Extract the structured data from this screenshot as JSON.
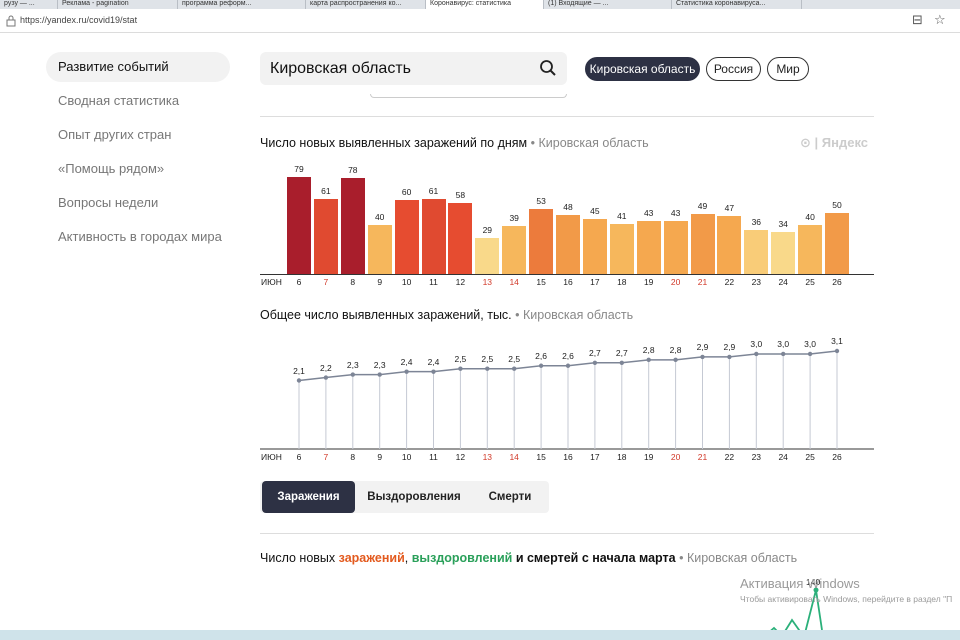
{
  "browser": {
    "url": "https://yandex.ru/covid19/stat",
    "tabs": [
      "рузу — ...",
      "Реклама - pagination",
      "программа реформ...",
      "карта распространения ко...",
      "Коронавирус: статистика",
      "(1) Входящие — ...",
      "Статистика коронавируса..."
    ]
  },
  "sidebar": {
    "items": [
      {
        "label": "Развитие событий",
        "active": true
      },
      {
        "label": "Сводная статистика"
      },
      {
        "label": "Опыт других стран"
      },
      {
        "label": "«Помощь рядом»"
      },
      {
        "label": "Вопросы недели"
      },
      {
        "label": "Активность в городах мира"
      }
    ]
  },
  "search": {
    "value": "Кировская область"
  },
  "regions": [
    {
      "label": "Кировская область",
      "active": true
    },
    {
      "label": "Россия"
    },
    {
      "label": "Мир"
    }
  ],
  "watermark": "Яндекс",
  "chart1": {
    "title": "Число новых выявленных заражений по дням",
    "region": "Кировская область"
  },
  "chart2": {
    "title": "Общее число выявленных заражений, тыс.",
    "region": "Кировская область"
  },
  "month_label": "ИЮН",
  "chart_data": [
    {
      "type": "bar",
      "title": "Число новых выявленных заражений по дням",
      "categories": [
        "6",
        "7",
        "8",
        "9",
        "10",
        "11",
        "12",
        "13",
        "14",
        "15",
        "16",
        "17",
        "18",
        "19",
        "20",
        "21",
        "22",
        "23",
        "24",
        "25",
        "26"
      ],
      "values": [
        79,
        61,
        78,
        40,
        60,
        61,
        58,
        29,
        39,
        53,
        48,
        45,
        41,
        43,
        43,
        49,
        47,
        36,
        34,
        40,
        50
      ],
      "colors": [
        "#a91e2c",
        "#e04a30",
        "#a91e2c",
        "#f6b75c",
        "#e64c30",
        "#e04a30",
        "#e64c30",
        "#f9d98a",
        "#f6b75c",
        "#ec7b3c",
        "#f29a48",
        "#f5a84f",
        "#f6b75c",
        "#f5a84f",
        "#f5a84f",
        "#f29a48",
        "#f5a84f",
        "#f9cc78",
        "#f9d98a",
        "#f6b75c",
        "#f29a48"
      ],
      "weekend": [
        false,
        true,
        false,
        false,
        false,
        false,
        false,
        true,
        true,
        false,
        false,
        false,
        false,
        false,
        true,
        true,
        false,
        false,
        false,
        false,
        false
      ]
    },
    {
      "type": "line",
      "title": "Общее число выявленных заражений, тыс.",
      "categories": [
        "6",
        "7",
        "8",
        "9",
        "10",
        "11",
        "12",
        "13",
        "14",
        "15",
        "16",
        "17",
        "18",
        "19",
        "20",
        "21",
        "22",
        "23",
        "24",
        "25",
        "26"
      ],
      "values": [
        2.1,
        2.2,
        2.3,
        2.3,
        2.4,
        2.4,
        2.5,
        2.5,
        2.5,
        2.6,
        2.6,
        2.7,
        2.7,
        2.8,
        2.8,
        2.9,
        2.9,
        3.0,
        3.0,
        3.0,
        3.1
      ],
      "labels": [
        "2,1",
        "2,2",
        "2,3",
        "2,3",
        "2,4",
        "2,4",
        "2,5",
        "2,5",
        "2,5",
        "2,6",
        "2,6",
        "2,7",
        "2,7",
        "2,8",
        "2,8",
        "2,9",
        "2,9",
        "3,0",
        "3,0",
        "3,0",
        "3,1"
      ]
    }
  ],
  "tabs_segment": [
    {
      "label": "Заражения",
      "active": true
    },
    {
      "label": "Выздоровления"
    },
    {
      "label": "Смерти"
    }
  ],
  "chart3": {
    "title_prefix": "Число новых ",
    "cases": "заражений",
    "comma": ", ",
    "recoveries": "выздоровлений",
    "title_suffix": " и смертей с начала марта",
    "region": "Кировская область",
    "peak_label": "140"
  },
  "activation": {
    "title": "Активация Windows",
    "subtitle": "Чтобы активировать Windows, перейдите в раздел \"П"
  }
}
